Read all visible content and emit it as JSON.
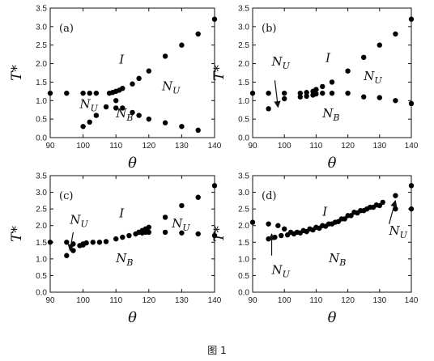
{
  "figure_caption": "图 1",
  "chart_data": [
    {
      "panel": "(a)",
      "type": "scatter",
      "xlabel": "θ",
      "ylabel": "T*",
      "xlim": [
        90,
        140
      ],
      "ylim": [
        0.0,
        3.5
      ],
      "xticks": [
        "90",
        "100",
        "110",
        "120",
        "130",
        "140"
      ],
      "yticks": [
        "0.0",
        "0.5",
        "1.0",
        "1.5",
        "2.0",
        "2.5",
        "3.0",
        "3.5"
      ],
      "grid": false,
      "series": [
        {
          "x": [
            90,
            95,
            100,
            102,
            104,
            108,
            109,
            110,
            111,
            112,
            115,
            117,
            120,
            125,
            130,
            135,
            140
          ],
          "y": [
            1.2,
            1.2,
            1.2,
            1.2,
            1.2,
            1.2,
            1.22,
            1.25,
            1.28,
            1.33,
            1.45,
            1.6,
            1.8,
            2.2,
            2.5,
            2.8,
            3.2
          ]
        },
        {
          "x": [
            100,
            102,
            104,
            107,
            110,
            112,
            115,
            117,
            120,
            125,
            130,
            135
          ],
          "y": [
            0.3,
            0.42,
            0.6,
            0.83,
            0.8,
            0.8,
            0.68,
            0.6,
            0.5,
            0.4,
            0.3,
            0.2
          ]
        },
        {
          "x": [
            110
          ],
          "y": [
            1.0
          ]
        }
      ],
      "annotations": [
        {
          "text": "I",
          "x": 111,
          "y": 2.0
        },
        {
          "text": "N_U",
          "x": 124,
          "y": 1.28
        },
        {
          "text": "N_U",
          "x": 99,
          "y": 0.8
        },
        {
          "text": "N_B",
          "x": 110,
          "y": 0.55
        }
      ]
    },
    {
      "panel": "(b)",
      "type": "scatter",
      "xlabel": "θ",
      "ylabel": "T*",
      "xlim": [
        90,
        140
      ],
      "ylim": [
        0.0,
        3.5
      ],
      "xticks": [
        "90",
        "100",
        "110",
        "120",
        "130",
        "140"
      ],
      "yticks": [
        "0.0",
        "0.5",
        "1.0",
        "1.5",
        "2.0",
        "2.5",
        "3.0",
        "3.5"
      ],
      "grid": false,
      "series": [
        {
          "x": [
            90,
            95,
            100,
            105,
            107,
            109,
            110,
            112,
            115,
            120,
            125,
            130,
            135,
            140
          ],
          "y": [
            1.2,
            1.2,
            1.2,
            1.2,
            1.22,
            1.25,
            1.3,
            1.38,
            1.5,
            1.8,
            2.17,
            2.5,
            2.8,
            3.2
          ]
        },
        {
          "x": [
            95,
            100,
            105,
            107,
            109,
            110,
            112,
            115,
            120,
            125,
            130,
            135,
            140
          ],
          "y": [
            0.78,
            1.05,
            1.1,
            1.12,
            1.15,
            1.18,
            1.2,
            1.2,
            1.2,
            1.1,
            1.08,
            1.0,
            0.92
          ]
        }
      ],
      "annotations": [
        {
          "text": "N_U",
          "x": 96,
          "y": 1.95
        },
        {
          "text": "I",
          "x": 113,
          "y": 2.05
        },
        {
          "text": "N_U",
          "x": 125,
          "y": 1.55
        },
        {
          "text": "N_B",
          "x": 112,
          "y": 0.55
        }
      ],
      "arrows": [
        {
          "from_x": 97,
          "from_y": 1.55,
          "to_x": 98,
          "to_y": 0.82
        }
      ]
    },
    {
      "panel": "(c)",
      "type": "scatter",
      "xlabel": "θ",
      "ylabel": "T*",
      "xlim": [
        90,
        140
      ],
      "ylim": [
        0.0,
        3.5
      ],
      "xticks": [
        "90",
        "100",
        "110",
        "120",
        "130",
        "140"
      ],
      "yticks": [
        "0.0",
        "0.5",
        "1.0",
        "1.5",
        "2.0",
        "2.5",
        "3.0",
        "3.5"
      ],
      "grid": false,
      "series": [
        {
          "x": [
            90,
            95,
            97,
            99,
            100,
            101,
            103,
            105,
            107,
            110,
            112,
            114,
            116,
            117,
            118,
            119,
            120,
            125,
            130,
            135,
            140
          ],
          "y": [
            1.5,
            1.5,
            1.45,
            1.4,
            1.45,
            1.48,
            1.5,
            1.5,
            1.52,
            1.6,
            1.65,
            1.7,
            1.75,
            1.8,
            1.85,
            1.9,
            1.95,
            2.25,
            2.6,
            2.85,
            3.2
          ]
        },
        {
          "x": [
            95,
            97,
            99,
            100,
            117,
            118,
            119,
            120,
            125,
            130,
            135,
            140
          ],
          "y": [
            1.1,
            1.25,
            1.4,
            1.42,
            1.8,
            1.78,
            1.8,
            1.8,
            1.8,
            1.78,
            1.75,
            1.7
          ]
        }
      ],
      "annotations": [
        {
          "text": "N_U",
          "x": 96,
          "y": 2.05
        },
        {
          "text": "I",
          "x": 111,
          "y": 2.25
        },
        {
          "text": "N_U",
          "x": 127,
          "y": 1.95
        },
        {
          "text": "N_B",
          "x": 110,
          "y": 0.9
        }
      ],
      "arrows": [
        {
          "from_x": 97,
          "from_y": 1.8,
          "to_x": 96,
          "to_y": 1.25
        }
      ]
    },
    {
      "panel": "(d)",
      "type": "scatter",
      "xlabel": "θ",
      "ylabel": "T*",
      "xlim": [
        90,
        140
      ],
      "ylim": [
        0.0,
        3.5
      ],
      "xticks": [
        "90",
        "100",
        "110",
        "120",
        "130",
        "140"
      ],
      "yticks": [
        "0.0",
        "0.5",
        "1.0",
        "1.5",
        "2.0",
        "2.5",
        "3.0",
        "3.5"
      ],
      "grid": false,
      "series": [
        {
          "x": [
            90,
            95,
            98,
            100,
            102,
            104,
            106,
            108,
            110,
            112,
            114,
            116,
            118,
            120,
            122,
            124,
            126,
            128,
            130,
            135,
            140
          ],
          "y": [
            2.1,
            2.05,
            2.0,
            1.9,
            1.8,
            1.8,
            1.85,
            1.9,
            1.95,
            2.0,
            2.05,
            2.1,
            2.2,
            2.3,
            2.4,
            2.45,
            2.5,
            2.55,
            2.6,
            2.9,
            3.2
          ]
        },
        {
          "x": [
            95,
            97,
            99,
            101,
            103,
            105,
            107,
            109,
            111,
            113,
            115,
            117,
            119,
            121,
            123,
            125,
            127,
            129,
            131,
            135,
            140
          ],
          "y": [
            1.6,
            1.65,
            1.7,
            1.72,
            1.75,
            1.78,
            1.82,
            1.87,
            1.92,
            1.98,
            2.05,
            2.12,
            2.2,
            2.3,
            2.38,
            2.45,
            2.55,
            2.62,
            2.7,
            2.5,
            2.5
          ]
        }
      ],
      "annotations": [
        {
          "text": "I",
          "x": 112,
          "y": 2.3
        },
        {
          "text": "N_U",
          "x": 96,
          "y": 0.55
        },
        {
          "text": "N_B",
          "x": 114,
          "y": 0.9
        },
        {
          "text": "N_U",
          "x": 133,
          "y": 1.72
        }
      ],
      "arrows": [
        {
          "from_x": 96,
          "from_y": 1.1,
          "to_x": 96,
          "to_y": 1.75
        },
        {
          "from_x": 133,
          "from_y": 2.05,
          "to_x": 135,
          "to_y": 2.75
        }
      ]
    }
  ]
}
